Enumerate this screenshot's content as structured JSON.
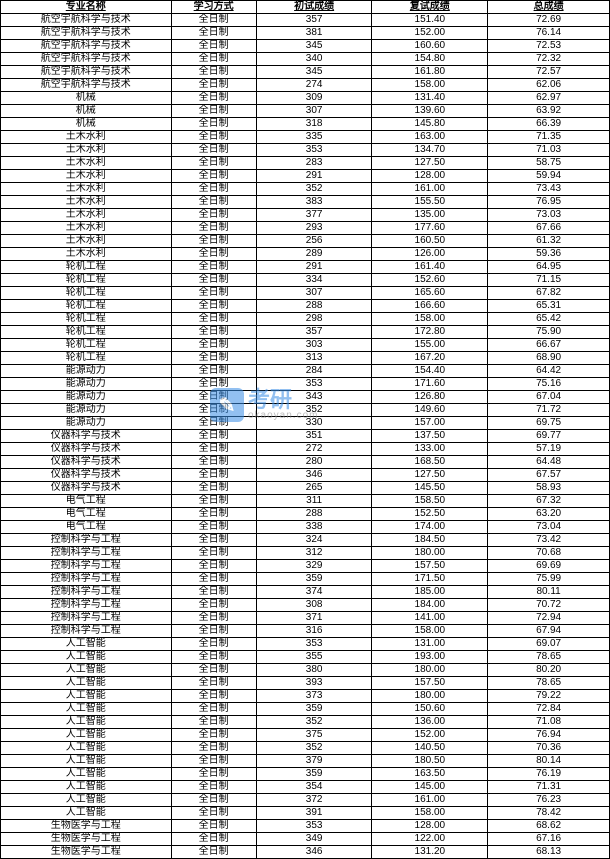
{
  "table": {
    "columns": [
      "专业名称",
      "学习方式",
      "初试成绩",
      "复试成绩",
      "总成绩"
    ],
    "study_mode": "全日制",
    "rows": [
      [
        "航空宇航科学与技术",
        "全日制",
        "357",
        "151.40",
        "72.69"
      ],
      [
        "航空宇航科学与技术",
        "全日制",
        "381",
        "152.00",
        "76.14"
      ],
      [
        "航空宇航科学与技术",
        "全日制",
        "345",
        "160.60",
        "72.53"
      ],
      [
        "航空宇航科学与技术",
        "全日制",
        "340",
        "154.80",
        "72.32"
      ],
      [
        "航空宇航科学与技术",
        "全日制",
        "345",
        "161.80",
        "72.57"
      ],
      [
        "航空宇航科学与技术",
        "全日制",
        "274",
        "158.00",
        "62.06"
      ],
      [
        "机械",
        "全日制",
        "309",
        "131.40",
        "62.97"
      ],
      [
        "机械",
        "全日制",
        "307",
        "139.60",
        "63.92"
      ],
      [
        "机械",
        "全日制",
        "318",
        "145.80",
        "66.39"
      ],
      [
        "土木水利",
        "全日制",
        "335",
        "163.00",
        "71.35"
      ],
      [
        "土木水利",
        "全日制",
        "353",
        "134.70",
        "71.03"
      ],
      [
        "土木水利",
        "全日制",
        "283",
        "127.50",
        "58.75"
      ],
      [
        "土木水利",
        "全日制",
        "291",
        "128.00",
        "59.94"
      ],
      [
        "土木水利",
        "全日制",
        "352",
        "161.00",
        "73.43"
      ],
      [
        "土木水利",
        "全日制",
        "383",
        "155.50",
        "76.95"
      ],
      [
        "土木水利",
        "全日制",
        "377",
        "135.00",
        "73.03"
      ],
      [
        "土木水利",
        "全日制",
        "293",
        "177.60",
        "67.66"
      ],
      [
        "土木水利",
        "全日制",
        "256",
        "160.50",
        "61.32"
      ],
      [
        "土木水利",
        "全日制",
        "289",
        "126.00",
        "59.36"
      ],
      [
        "轮机工程",
        "全日制",
        "291",
        "161.40",
        "64.95"
      ],
      [
        "轮机工程",
        "全日制",
        "334",
        "152.60",
        "71.15"
      ],
      [
        "轮机工程",
        "全日制",
        "307",
        "165.60",
        "67.82"
      ],
      [
        "轮机工程",
        "全日制",
        "288",
        "166.60",
        "65.31"
      ],
      [
        "轮机工程",
        "全日制",
        "298",
        "158.00",
        "65.42"
      ],
      [
        "轮机工程",
        "全日制",
        "357",
        "172.80",
        "75.90"
      ],
      [
        "轮机工程",
        "全日制",
        "303",
        "155.00",
        "66.67"
      ],
      [
        "轮机工程",
        "全日制",
        "313",
        "167.20",
        "68.90"
      ],
      [
        "能源动力",
        "全日制",
        "284",
        "154.40",
        "64.42"
      ],
      [
        "能源动力",
        "全日制",
        "353",
        "171.60",
        "75.16"
      ],
      [
        "能源动力",
        "全日制",
        "343",
        "126.80",
        "67.04"
      ],
      [
        "能源动力",
        "全日制",
        "352",
        "149.60",
        "71.72"
      ],
      [
        "能源动力",
        "全日制",
        "330",
        "157.00",
        "69.75"
      ],
      [
        "仪器科学与技术",
        "全日制",
        "351",
        "137.50",
        "69.77"
      ],
      [
        "仪器科学与技术",
        "全日制",
        "272",
        "133.00",
        "57.19"
      ],
      [
        "仪器科学与技术",
        "全日制",
        "280",
        "168.50",
        "64.48"
      ],
      [
        "仪器科学与技术",
        "全日制",
        "346",
        "127.50",
        "67.57"
      ],
      [
        "仪器科学与技术",
        "全日制",
        "265",
        "145.50",
        "58.93"
      ],
      [
        "电气工程",
        "全日制",
        "311",
        "158.50",
        "67.32"
      ],
      [
        "电气工程",
        "全日制",
        "288",
        "152.50",
        "63.20"
      ],
      [
        "电气工程",
        "全日制",
        "338",
        "174.00",
        "73.04"
      ],
      [
        "控制科学与工程",
        "全日制",
        "324",
        "184.50",
        "73.42"
      ],
      [
        "控制科学与工程",
        "全日制",
        "312",
        "180.00",
        "70.68"
      ],
      [
        "控制科学与工程",
        "全日制",
        "329",
        "157.50",
        "69.69"
      ],
      [
        "控制科学与工程",
        "全日制",
        "359",
        "171.50",
        "75.99"
      ],
      [
        "控制科学与工程",
        "全日制",
        "374",
        "185.00",
        "80.11"
      ],
      [
        "控制科学与工程",
        "全日制",
        "308",
        "184.00",
        "70.72"
      ],
      [
        "控制科学与工程",
        "全日制",
        "371",
        "141.00",
        "72.94"
      ],
      [
        "控制科学与工程",
        "全日制",
        "316",
        "158.00",
        "67.94"
      ],
      [
        "人工智能",
        "全日制",
        "353",
        "131.00",
        "69.07"
      ],
      [
        "人工智能",
        "全日制",
        "355",
        "193.00",
        "78.65"
      ],
      [
        "人工智能",
        "全日制",
        "380",
        "180.00",
        "80.20"
      ],
      [
        "人工智能",
        "全日制",
        "393",
        "157.50",
        "78.65"
      ],
      [
        "人工智能",
        "全日制",
        "373",
        "180.00",
        "79.22"
      ],
      [
        "人工智能",
        "全日制",
        "359",
        "150.60",
        "72.84"
      ],
      [
        "人工智能",
        "全日制",
        "352",
        "136.00",
        "71.08"
      ],
      [
        "人工智能",
        "全日制",
        "375",
        "152.00",
        "76.94"
      ],
      [
        "人工智能",
        "全日制",
        "352",
        "140.50",
        "70.36"
      ],
      [
        "人工智能",
        "全日制",
        "379",
        "180.50",
        "80.14"
      ],
      [
        "人工智能",
        "全日制",
        "359",
        "163.50",
        "76.19"
      ],
      [
        "人工智能",
        "全日制",
        "354",
        "145.00",
        "71.31"
      ],
      [
        "人工智能",
        "全日制",
        "372",
        "161.00",
        "76.23"
      ],
      [
        "人工智能",
        "全日制",
        "391",
        "158.00",
        "78.42"
      ],
      [
        "生物医学与工程",
        "全日制",
        "353",
        "128.00",
        "68.62"
      ],
      [
        "生物医学与工程",
        "全日制",
        "349",
        "122.00",
        "67.16"
      ],
      [
        "生物医学与工程",
        "全日制",
        "346",
        "131.20",
        "68.13"
      ]
    ],
    "col_align": [
      "center",
      "center",
      "center",
      "center",
      "center"
    ],
    "border_color": "#000000",
    "font_size": 10,
    "header_underline": true
  },
  "watermark": {
    "icon_text": "✎",
    "main_text": "考研",
    "sub_text": "okaoyan.com",
    "icon_bg": "#3a8ee6",
    "text_color": "#3a8ee6",
    "sub_color": "#888888"
  }
}
